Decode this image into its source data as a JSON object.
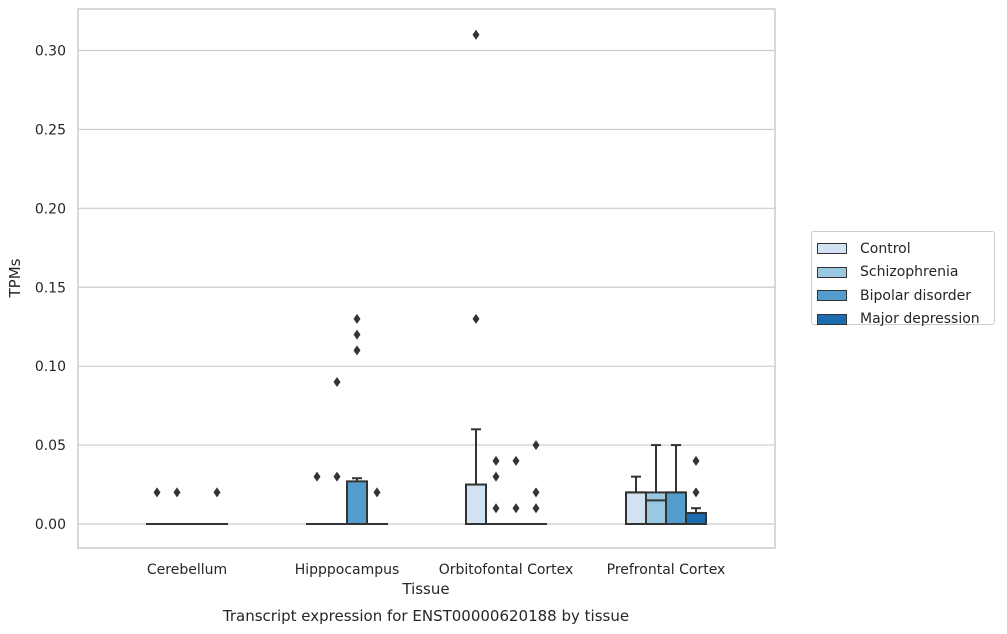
{
  "chart_data": {
    "type": "box",
    "title": "Transcript expression for ENST00000620188 by tissue",
    "xlabel": "Tissue",
    "ylabel": "TPMs",
    "ylim": [
      -0.015,
      0.325
    ],
    "yticks": [
      "0.00",
      "0.05",
      "0.10",
      "0.15",
      "0.20",
      "0.25",
      "0.30"
    ],
    "categories": [
      "Cerebellum",
      "Hipppocampus",
      "Orbitofontal Cortex",
      "Prefrontal Cortex"
    ],
    "grid": true,
    "legend_position": "right",
    "series": [
      {
        "name": "Control",
        "color": "#d1e2f2",
        "boxes": [
          {
            "q1": 0,
            "median": 0,
            "q3": 0,
            "whisker_low": 0,
            "whisker_high": 0,
            "outliers": [
              0.02
            ]
          },
          {
            "q1": 0,
            "median": 0,
            "q3": 0,
            "whisker_low": 0,
            "whisker_high": 0,
            "outliers": [
              0.03
            ]
          },
          {
            "q1": 0,
            "median": 0,
            "q3": 0.025,
            "whisker_low": 0,
            "whisker_high": 0.06,
            "outliers": [
              0.13,
              0.31
            ]
          },
          {
            "q1": 0,
            "median": 0.02,
            "q3": 0.02,
            "whisker_low": 0,
            "whisker_high": 0.03,
            "outliers": []
          }
        ]
      },
      {
        "name": "Schizophrenia",
        "color": "#9ac8e0",
        "boxes": [
          {
            "q1": 0,
            "median": 0,
            "q3": 0,
            "whisker_low": 0,
            "whisker_high": 0,
            "outliers": [
              0.02
            ]
          },
          {
            "q1": 0,
            "median": 0,
            "q3": 0,
            "whisker_low": 0,
            "whisker_high": 0,
            "outliers": [
              0.03,
              0.09
            ]
          },
          {
            "q1": 0,
            "median": 0,
            "q3": 0,
            "whisker_low": 0,
            "whisker_high": 0,
            "outliers": [
              0.01,
              0.03,
              0.04
            ]
          },
          {
            "q1": 0,
            "median": 0.015,
            "q3": 0.02,
            "whisker_low": 0,
            "whisker_high": 0.05,
            "outliers": []
          }
        ]
      },
      {
        "name": "Bipolar disorder",
        "color": "#529dcc",
        "boxes": [
          {
            "q1": 0,
            "median": 0,
            "q3": 0,
            "whisker_low": 0,
            "whisker_high": 0,
            "outliers": []
          },
          {
            "q1": 0,
            "median": 0,
            "q3": 0.027,
            "whisker_low": 0,
            "whisker_high": 0.029,
            "outliers": [
              0.11,
              0.12,
              0.13
            ]
          },
          {
            "q1": 0,
            "median": 0,
            "q3": 0,
            "whisker_low": 0,
            "whisker_high": 0,
            "outliers": [
              0.01,
              0.04
            ]
          },
          {
            "q1": 0,
            "median": 0.02,
            "q3": 0.02,
            "whisker_low": 0,
            "whisker_high": 0.05,
            "outliers": []
          }
        ]
      },
      {
        "name": "Major depression",
        "color": "#1c6aaf",
        "boxes": [
          {
            "q1": 0,
            "median": 0,
            "q3": 0,
            "whisker_low": 0,
            "whisker_high": 0,
            "outliers": [
              0.02
            ]
          },
          {
            "q1": 0,
            "median": 0,
            "q3": 0,
            "whisker_low": 0,
            "whisker_high": 0,
            "outliers": [
              0.02
            ]
          },
          {
            "q1": 0,
            "median": 0,
            "q3": 0,
            "whisker_low": 0,
            "whisker_high": 0,
            "outliers": [
              0.01,
              0.02,
              0.05
            ]
          },
          {
            "q1": 0,
            "median": 0.007,
            "q3": 0.007,
            "whisker_low": 0,
            "whisker_high": 0.01,
            "outliers": [
              0.02,
              0.04
            ]
          }
        ]
      }
    ]
  }
}
